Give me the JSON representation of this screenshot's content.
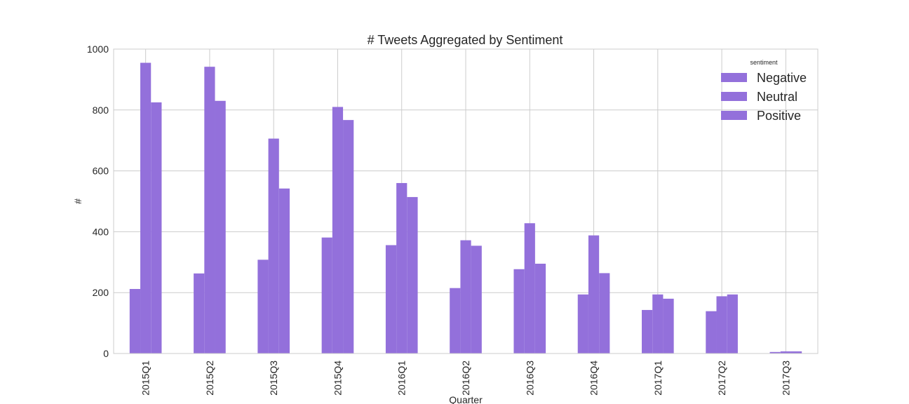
{
  "chart_data": {
    "type": "bar",
    "title": "# Tweets Aggregated by Sentiment",
    "xlabel": "Quarter",
    "ylabel": "#",
    "ylim": [
      0,
      1000
    ],
    "yticks": [
      0,
      200,
      400,
      600,
      800,
      1000
    ],
    "grid": true,
    "bar_color": "#9370db",
    "categories": [
      "2015Q1",
      "2015Q2",
      "2015Q3",
      "2015Q4",
      "2016Q1",
      "2016Q2",
      "2016Q3",
      "2016Q4",
      "2017Q1",
      "2017Q2",
      "2017Q3"
    ],
    "legend": {
      "title": "sentiment",
      "placement": "top-right"
    },
    "series": [
      {
        "name": "Negative",
        "values": [
          212,
          263,
          308,
          381,
          356,
          215,
          277,
          194,
          143,
          139,
          5
        ]
      },
      {
        "name": "Neutral",
        "values": [
          955,
          942,
          706,
          810,
          560,
          372,
          428,
          388,
          194,
          188,
          7
        ]
      },
      {
        "name": "Positive",
        "values": [
          825,
          830,
          542,
          767,
          514,
          354,
          295,
          264,
          180,
          194,
          7
        ]
      }
    ]
  }
}
